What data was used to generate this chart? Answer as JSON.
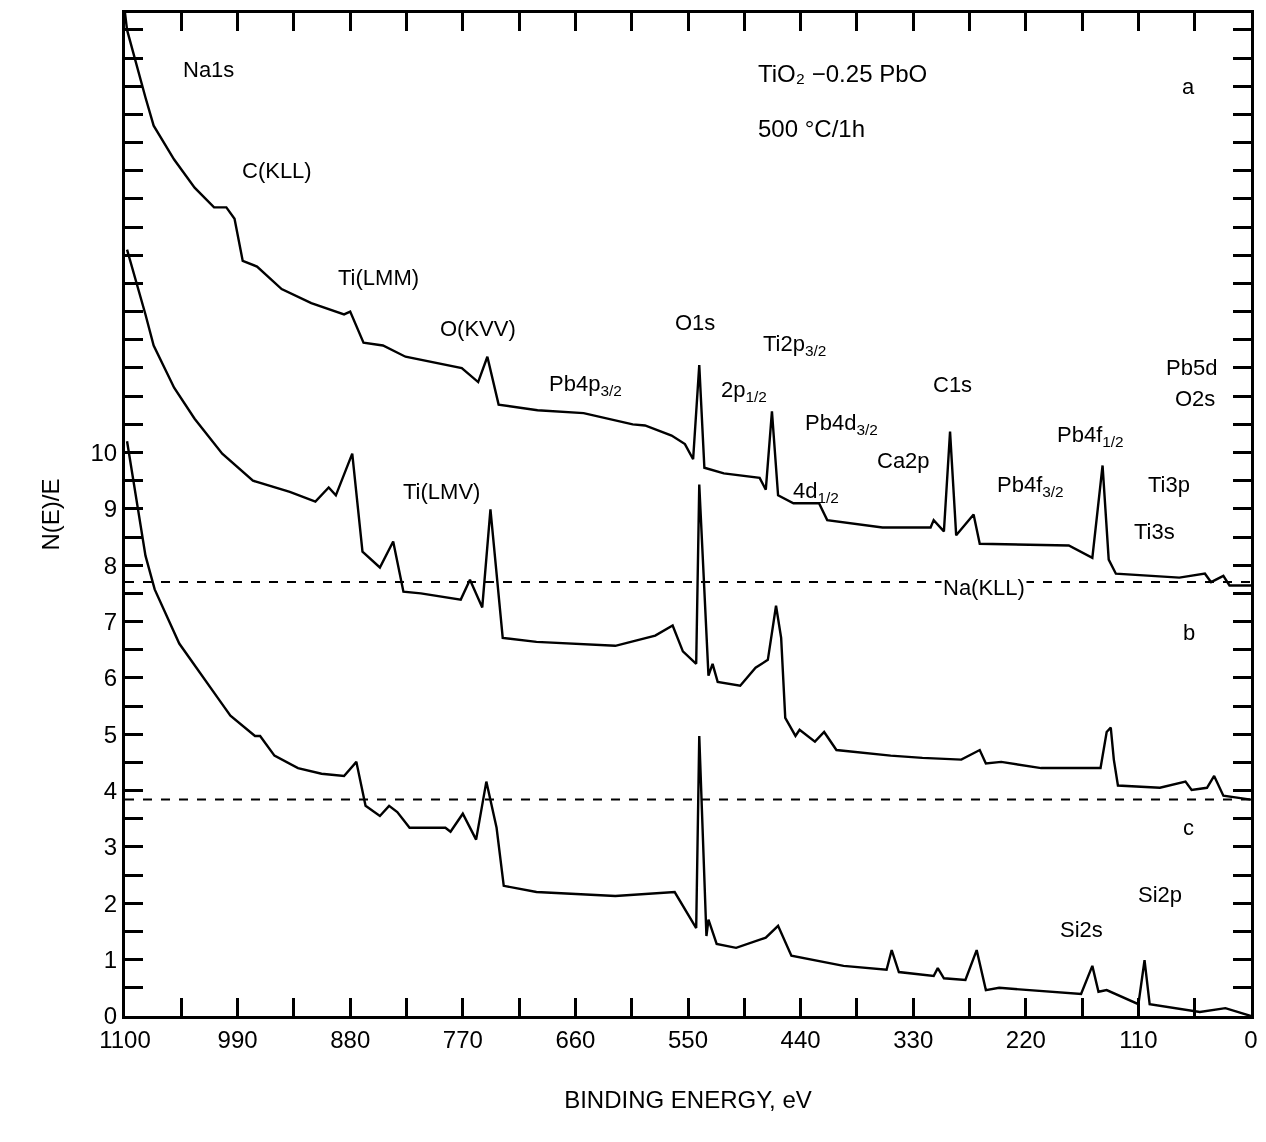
{
  "chart_data": {
    "type": "line",
    "title": "TiO₂ −0.25 PbO",
    "subtitle": "500 °C/1h",
    "xlabel": "BINDING ENERGY, eV",
    "ylabel": "N(E)/E",
    "xlim": [
      1100,
      0
    ],
    "ylim": [
      0,
      17.8
    ],
    "xticks": [
      1100,
      990,
      880,
      770,
      660,
      550,
      440,
      330,
      220,
      110,
      0
    ],
    "yticks": [
      0,
      1,
      2,
      3,
      4,
      5,
      6,
      7,
      8,
      9,
      10
    ],
    "marker": "none",
    "line_style": "solid",
    "series": [
      {
        "color": "#000000",
        "x": [
          1100,
          1098,
          1080,
          1072,
          1052,
          1032,
          1013,
          1001,
          993,
          985,
          971,
          947,
          918,
          886,
          880,
          867,
          848,
          826,
          771,
          755,
          746,
          735,
          697,
          652,
          604,
          592,
          566,
          553,
          545,
          539,
          534,
          515,
          480,
          474,
          468,
          462,
          447,
          422,
          414,
          360,
          313,
          310,
          300,
          294,
          288,
          271,
          265,
          178,
          155,
          145,
          139,
          132,
          70,
          45,
          39,
          27,
          21,
          0
        ],
        "values": [
          17.8,
          17.5,
          16.3,
          15.8,
          15.2,
          14.7,
          14.35,
          14.35,
          14.15,
          13.4,
          13.3,
          12.9,
          12.65,
          12.45,
          12.5,
          11.95,
          11.9,
          11.7,
          11.5,
          11.25,
          11.7,
          10.85,
          10.75,
          10.7,
          10.5,
          10.48,
          10.3,
          10.15,
          9.88,
          11.55,
          9.73,
          9.63,
          9.55,
          9.34,
          10.73,
          9.24,
          9.1,
          9.1,
          8.8,
          8.67,
          8.67,
          8.8,
          8.6,
          10.37,
          8.53,
          8.9,
          8.38,
          8.35,
          8.13,
          9.77,
          8.1,
          7.85,
          7.78,
          7.85,
          7.7,
          7.81,
          7.64,
          7.64
        ]
      },
      {
        "color": "#000000",
        "x": [
          1098,
          1080,
          1072,
          1052,
          1032,
          1005,
          975,
          939,
          914,
          901,
          894,
          878,
          868,
          851,
          838,
          828,
          811,
          772,
          763,
          751,
          743,
          731,
          698,
          621,
          582,
          565,
          555,
          542,
          539,
          530,
          526,
          521,
          499,
          484,
          472,
          464,
          459,
          455,
          445,
          441,
          426,
          417,
          405,
          352,
          321,
          283,
          265,
          259,
          244,
          205,
          147,
          141,
          137,
          134,
          130,
          89,
          64,
          58,
          43,
          36,
          27,
          0
        ],
        "values": [
          13.6,
          12.45,
          11.9,
          11.15,
          10.6,
          9.98,
          9.5,
          9.3,
          9.13,
          9.38,
          9.24,
          9.98,
          8.24,
          7.96,
          8.42,
          7.53,
          7.5,
          7.39,
          7.74,
          7.25,
          8.99,
          6.71,
          6.64,
          6.57,
          6.75,
          6.93,
          6.47,
          6.25,
          9.43,
          6.04,
          6.25,
          5.93,
          5.86,
          6.18,
          6.32,
          7.28,
          6.71,
          5.29,
          4.97,
          5.08,
          4.87,
          5.04,
          4.72,
          4.62,
          4.58,
          4.55,
          4.72,
          4.48,
          4.51,
          4.4,
          4.4,
          5.04,
          5.12,
          4.55,
          4.09,
          4.05,
          4.16,
          4.01,
          4.05,
          4.26,
          3.91,
          3.84
        ]
      },
      {
        "color": "#000000",
        "x": [
          1098,
          1080,
          1071,
          1047,
          1008,
          997,
          973,
          968,
          954,
          931,
          908,
          886,
          874,
          865,
          851,
          842,
          834,
          822,
          787,
          782,
          770,
          757,
          747,
          737,
          730,
          698,
          621,
          563,
          542,
          539,
          532,
          530,
          522,
          503,
          474,
          462,
          449,
          398,
          356,
          351,
          344,
          310,
          306,
          300,
          279,
          268,
          259,
          246,
          166,
          155,
          149,
          141,
          110,
          104,
          99,
          50,
          25,
          0
        ],
        "values": [
          10.2,
          8.17,
          7.57,
          6.61,
          5.61,
          5.33,
          4.97,
          4.97,
          4.62,
          4.4,
          4.3,
          4.26,
          4.51,
          3.73,
          3.55,
          3.73,
          3.62,
          3.34,
          3.34,
          3.27,
          3.59,
          3.13,
          4.16,
          3.34,
          2.31,
          2.2,
          2.13,
          2.2,
          1.56,
          4.97,
          1.42,
          1.71,
          1.28,
          1.21,
          1.39,
          1.6,
          1.07,
          0.89,
          0.82,
          1.17,
          0.78,
          0.71,
          0.85,
          0.67,
          0.64,
          1.17,
          0.46,
          0.5,
          0.39,
          0.89,
          0.43,
          0.46,
          0.21,
          0.99,
          0.21,
          0.07,
          0.14,
          0
        ]
      }
    ],
    "ref_lines": [
      {
        "axis": "y",
        "value": 7.7,
        "color": "#000000",
        "line_style": "dashed"
      },
      {
        "axis": "y",
        "value": 3.84,
        "color": "#000000",
        "line_style": "dashed"
      }
    ],
    "annotations": [
      "Na1s",
      "C(KLL)",
      "Ti(LMM)",
      "O(KVV)",
      "Pb4p$_{3/2}$",
      "O1s",
      "Ti2p$_{3/2}$",
      "2p$_{1/2}$",
      "Pb4d$_{3/2}$",
      "4d$_{1/2}$",
      "Ca2p",
      "C1s",
      "Pb4f$_{3/2}$",
      "Pb4f$_{1/2}$",
      "Pb5d",
      "O2s",
      "Ti3p",
      "Ti3s",
      "Na(KLL)",
      "Ti(LMV)",
      "a",
      "b",
      "c",
      "Si2s",
      "Si2p"
    ]
  }
}
